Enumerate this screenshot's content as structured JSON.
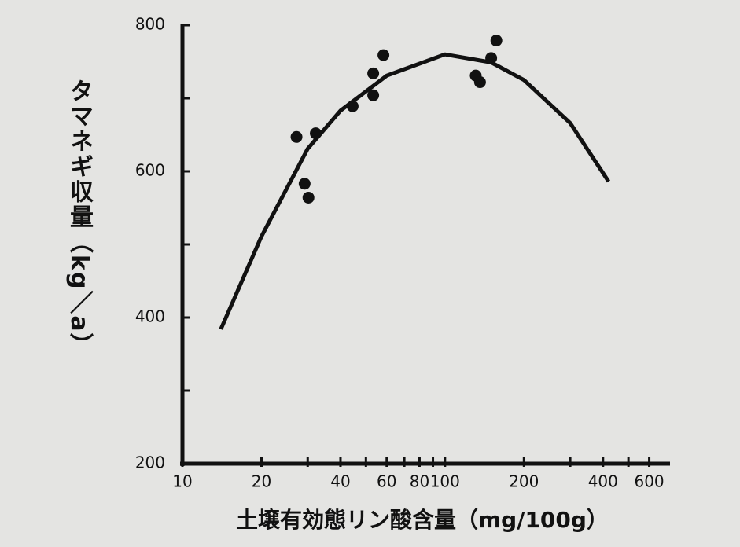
{
  "chart_data": {
    "type": "scatter",
    "x_label": "土壌有効態リン酸含量（mg/100g）",
    "y_label": "タマネギ収量（kg／a）",
    "x": [
      27.2,
      29.2,
      30.2,
      32.2,
      44.5,
      53.3,
      53.3,
      58.3,
      131,
      136,
      150,
      157
    ],
    "values": [
      647,
      583,
      564,
      652,
      689,
      734,
      704,
      759,
      731,
      722,
      755,
      779
    ],
    "color": "#111111",
    "curve": {
      "x": [
        14,
        20,
        30,
        40,
        60,
        100,
        150,
        200,
        300,
        420
      ],
      "values": [
        384,
        511,
        631,
        683,
        731,
        760,
        749,
        725,
        666,
        586
      ],
      "color": "#111111"
    },
    "xscale": "log",
    "xlim": [
      10,
      720
    ],
    "ylim": [
      200,
      800
    ],
    "xticks": [
      10,
      20,
      40,
      60,
      80,
      100,
      200,
      400,
      600
    ],
    "xminor_ticks": [
      30,
      50,
      70,
      90,
      300,
      500
    ],
    "yticks": [
      200,
      400,
      600,
      800
    ],
    "yminor_ticks": [
      300,
      500,
      700
    ]
  }
}
